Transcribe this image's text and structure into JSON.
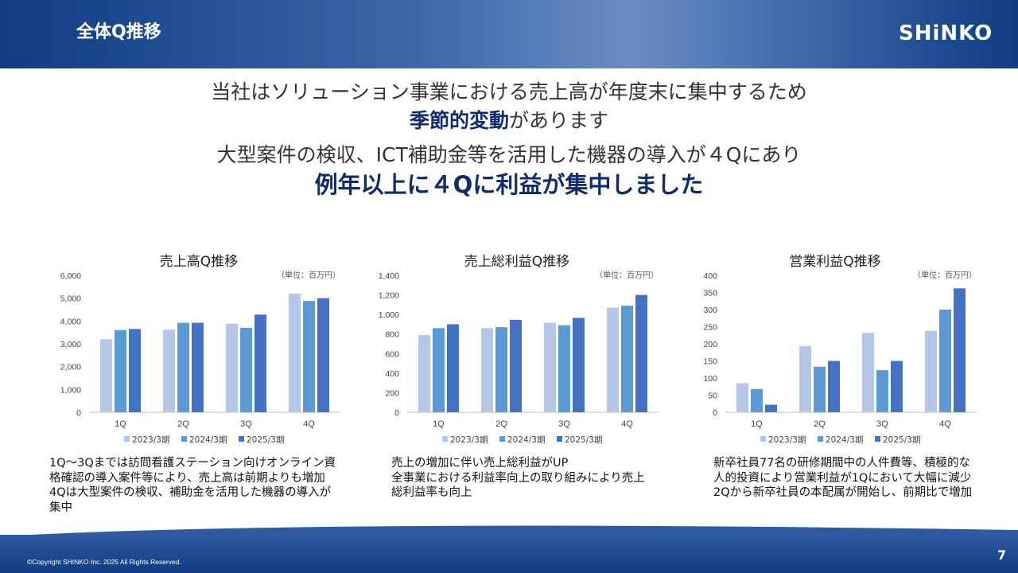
{
  "header": {
    "title": "全体Q推移",
    "logo": "SHiNKO"
  },
  "headline": {
    "line1": "当社はソリューション事業における売上高が年度末に集中するため",
    "line2_emphasis": "季節的変動",
    "line2_rest": "があります",
    "line3": "大型案件の検収、ICT補助金等を活用した機器の導入が４Qにあり",
    "line4": "例年以上に４Qに利益が集中しました"
  },
  "legend_colors": [
    "#b4c7e7",
    "#5b9bd5",
    "#4472c4"
  ],
  "chart_data": [
    {
      "type": "bar",
      "title": "売上高Q推移",
      "unit_label": "（単位：百万円）",
      "categories": [
        "1Q",
        "2Q",
        "3Q",
        "4Q"
      ],
      "ylim": [
        0,
        6000
      ],
      "yticks": [
        0,
        1000,
        2000,
        3000,
        4000,
        5000,
        6000
      ],
      "ytick_labels": [
        "0",
        "1,000",
        "2,000",
        "3,000",
        "4,000",
        "5,000",
        "6,000"
      ],
      "series": [
        {
          "name": "2023/3期",
          "values": [
            3200,
            3620,
            3880,
            5200
          ]
        },
        {
          "name": "2024/3期",
          "values": [
            3600,
            3920,
            3700,
            4880
          ]
        },
        {
          "name": "2025/3期",
          "values": [
            3650,
            3920,
            4280,
            5000
          ]
        }
      ],
      "grid": false,
      "legend_position": "bottom"
    },
    {
      "type": "bar",
      "title": "売上総利益Q推移",
      "unit_label": "（単位：百万円）",
      "categories": [
        "1Q",
        "2Q",
        "3Q",
        "4Q"
      ],
      "ylim": [
        0,
        1400
      ],
      "yticks": [
        0,
        200,
        400,
        600,
        800,
        1000,
        1200,
        1400
      ],
      "ytick_labels": [
        "0",
        "200",
        "400",
        "600",
        "800",
        "1,000",
        "1,200",
        "1,400"
      ],
      "series": [
        {
          "name": "2023/3期",
          "values": [
            790,
            860,
            915,
            1070
          ]
        },
        {
          "name": "2024/3期",
          "values": [
            860,
            870,
            890,
            1090
          ]
        },
        {
          "name": "2025/3期",
          "values": [
            900,
            945,
            965,
            1200
          ]
        }
      ],
      "grid": false,
      "legend_position": "bottom"
    },
    {
      "type": "bar",
      "title": "営業利益Q推移",
      "unit_label": "（単位：百万円）",
      "categories": [
        "1Q",
        "2Q",
        "3Q",
        "4Q"
      ],
      "ylim": [
        0,
        400
      ],
      "yticks": [
        0,
        50,
        100,
        150,
        200,
        250,
        300,
        350,
        400
      ],
      "ytick_labels": [
        "0",
        "50",
        "100",
        "150",
        "200",
        "250",
        "300",
        "350",
        "400"
      ],
      "series": [
        {
          "name": "2023/3期",
          "values": [
            85,
            193,
            232,
            238
          ]
        },
        {
          "name": "2024/3期",
          "values": [
            68,
            133,
            123,
            300
          ]
        },
        {
          "name": "2025/3期",
          "values": [
            22,
            150,
            150,
            362
          ]
        }
      ],
      "grid": false,
      "legend_position": "bottom"
    }
  ],
  "notes": [
    [
      "1Q～3Qまでは訪問看護ステーション向けオンライン資",
      "格確認の導入案件等により、売上高は前期よりも増加",
      "4Qは大型案件の検収、補助金を活用した機器の導入が",
      "集中"
    ],
    [
      "売上の増加に伴い売上総利益がUP",
      "全事業における利益率向上の取り組みにより売上",
      "総利益率も向上"
    ],
    [
      "新卒社員77名の研修期間中の人件費等、積極的な",
      "人的投資により営業利益が1Qにおいて大幅に減少",
      "2Qから新卒社員の本配属が開始し、前期比で増加"
    ]
  ],
  "footer": {
    "copyright": "©Copyright SHINKO Inc. 2025 All Rights Reserved.",
    "page_number": "7"
  }
}
